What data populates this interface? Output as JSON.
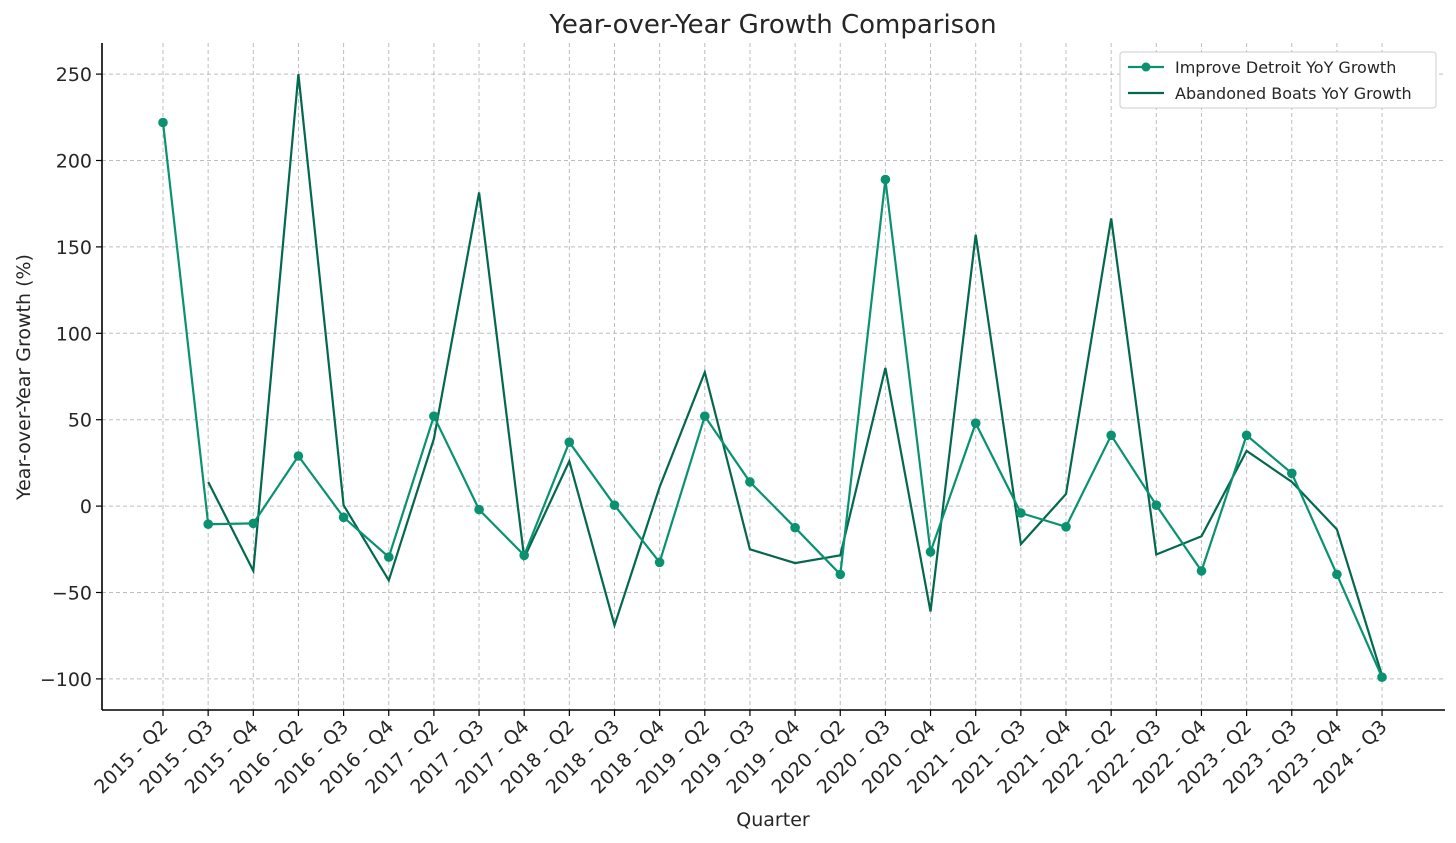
{
  "chart_data": {
    "type": "line",
    "title": "Year-over-Year Growth Comparison",
    "xlabel": "Quarter",
    "ylabel": "Year-over-Year Growth (%)",
    "ylim": [
      -118,
      268
    ],
    "yticks": [
      -100,
      -50,
      0,
      50,
      100,
      150,
      200,
      250
    ],
    "ytick_labels": [
      "−100",
      "−50",
      "0",
      "50",
      "100",
      "150",
      "200",
      "250"
    ],
    "grid": true,
    "legend_position": "top-right",
    "categories": [
      "2015 - Q2",
      "2015 - Q3",
      "2015 - Q4",
      "2016 - Q2",
      "2016 - Q3",
      "2016 - Q4",
      "2017 - Q2",
      "2017 - Q3",
      "2017 - Q4",
      "2018 - Q2",
      "2018 - Q3",
      "2018 - Q4",
      "2019 - Q2",
      "2019 - Q3",
      "2019 - Q4",
      "2020 - Q2",
      "2020 - Q3",
      "2020 - Q4",
      "2021 - Q2",
      "2021 - Q3",
      "2021 - Q4",
      "2022 - Q2",
      "2022 - Q3",
      "2022 - Q4",
      "2023 - Q2",
      "2023 - Q3",
      "2023 - Q4",
      "2024 - Q3"
    ],
    "series": [
      {
        "name": "Improve Detroit YoY Growth",
        "color": "#0a9270",
        "marker": "circle",
        "values": [
          222,
          -10.5,
          -10,
          29,
          -6.5,
          -29.5,
          52,
          -2,
          -28.5,
          37,
          0.5,
          -32.5,
          52,
          14,
          -12.5,
          -39.5,
          189,
          -26.5,
          48,
          -4,
          -12,
          41,
          0.5,
          -37.5,
          41,
          19,
          -39.5,
          -99
        ]
      },
      {
        "name": "Abandoned Boats YoY Growth",
        "color": "#04684e",
        "marker": "none",
        "values": [
          null,
          14,
          -37.5,
          250,
          0.5,
          -43,
          39,
          181.5,
          -30,
          26,
          -69,
          11,
          77.5,
          -25,
          -33,
          -28.5,
          80,
          -61,
          157,
          -22,
          7,
          166.5,
          -28,
          -17.5,
          32,
          14,
          -13.5,
          -98
        ]
      }
    ]
  }
}
